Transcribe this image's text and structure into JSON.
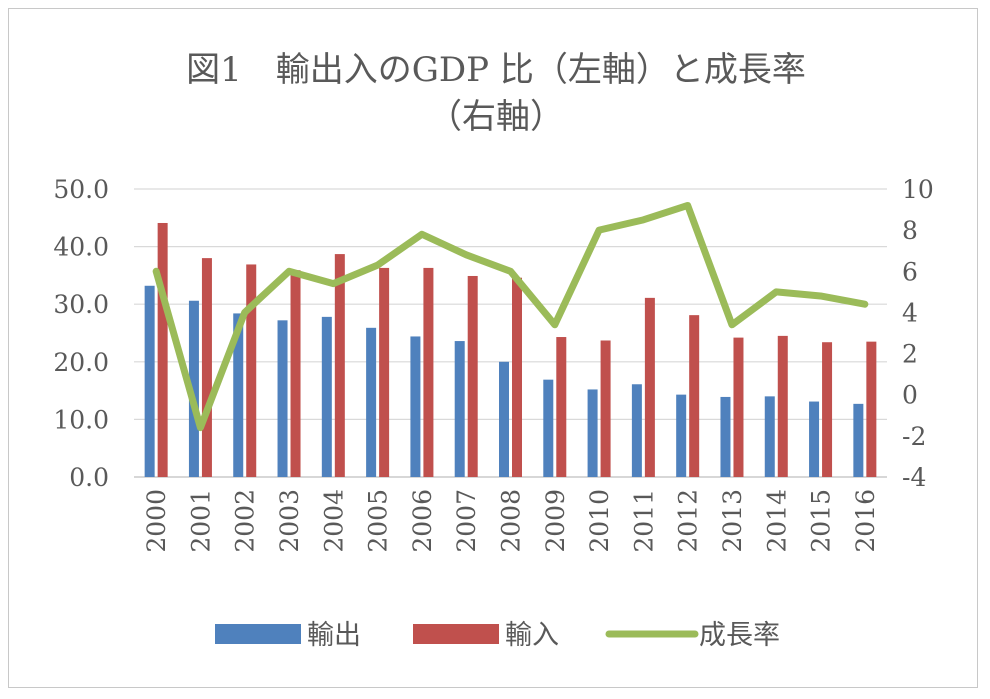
{
  "chart_data": {
    "type": "bar",
    "title_line1": "図1　輸出入のGDP 比（左軸）と成長率",
    "title_line2": "（右軸）",
    "categories": [
      "2000",
      "2001",
      "2002",
      "2003",
      "2004",
      "2005",
      "2006",
      "2007",
      "2008",
      "2009",
      "2010",
      "2011",
      "2012",
      "2013",
      "2014",
      "2015",
      "2016"
    ],
    "series": [
      {
        "name": "輸出",
        "axis": "left",
        "kind": "bar",
        "color": "#4F81BD",
        "values": [
          33.2,
          30.6,
          28.4,
          27.2,
          27.8,
          25.9,
          24.4,
          23.6,
          20.0,
          16.9,
          15.2,
          16.1,
          14.3,
          13.9,
          14.0,
          13.1,
          12.7
        ]
      },
      {
        "name": "輸入",
        "axis": "left",
        "kind": "bar",
        "color": "#C0504D",
        "values": [
          44.1,
          38.0,
          36.9,
          35.9,
          38.7,
          36.3,
          36.3,
          34.9,
          34.6,
          24.3,
          23.7,
          31.1,
          28.1,
          24.2,
          24.5,
          23.4,
          23.5
        ]
      },
      {
        "name": "成長率",
        "axis": "right",
        "kind": "line",
        "color": "#9BBB59",
        "values": [
          6.0,
          -1.6,
          4.0,
          6.0,
          5.4,
          6.3,
          7.8,
          6.8,
          6.0,
          3.4,
          8.0,
          8.5,
          9.2,
          3.4,
          5.0,
          4.8,
          4.4
        ]
      }
    ],
    "left_axis": {
      "ylim": [
        0,
        50
      ],
      "ticks": [
        "0.0",
        "10.0",
        "20.0",
        "30.0",
        "40.0",
        "50.0"
      ]
    },
    "right_axis": {
      "ylim": [
        -4,
        10
      ],
      "ticks": [
        "-4",
        "-2",
        "0",
        "2",
        "4",
        "6",
        "8",
        "10"
      ]
    },
    "grid": true,
    "legend_position": "bottom"
  }
}
